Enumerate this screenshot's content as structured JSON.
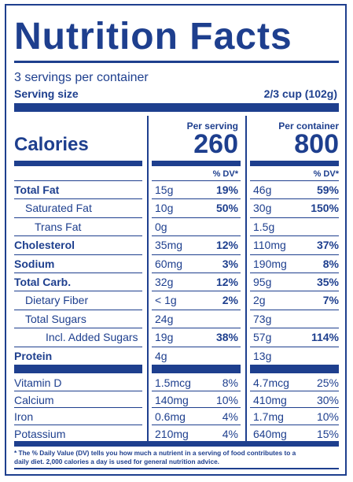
{
  "title": "Nutrition Facts",
  "servings_per_container": "3 servings per container",
  "serving_size_label": "Serving size",
  "serving_size_value": "2/3 cup (102g)",
  "calories_label": "Calories",
  "columns": {
    "per_serving": "Per serving",
    "per_container": "Per container",
    "dv_header": "% DV*"
  },
  "calories": {
    "per_serving": "260",
    "per_container": "800"
  },
  "nutrients": [
    {
      "name": "Total Fat",
      "bold": true,
      "indent": 0,
      "s_amt": "15g",
      "s_dv": "19%",
      "c_amt": "46g",
      "c_dv": "59%"
    },
    {
      "name": "Saturated Fat",
      "bold": false,
      "indent": 1,
      "s_amt": "10g",
      "s_dv": "50%",
      "c_amt": "30g",
      "c_dv": "150%"
    },
    {
      "name": "Trans Fat",
      "bold": false,
      "indent": 2,
      "s_amt": "0g",
      "s_dv": "",
      "c_amt": "1.5g",
      "c_dv": ""
    },
    {
      "name": "Cholesterol",
      "bold": true,
      "indent": 0,
      "s_amt": "35mg",
      "s_dv": "12%",
      "c_amt": "110mg",
      "c_dv": "37%"
    },
    {
      "name": "Sodium",
      "bold": true,
      "indent": 0,
      "s_amt": "60mg",
      "s_dv": "3%",
      "c_amt": "190mg",
      "c_dv": "8%"
    },
    {
      "name": "Total Carb.",
      "bold": true,
      "indent": 0,
      "s_amt": "32g",
      "s_dv": "12%",
      "c_amt": "95g",
      "c_dv": "35%"
    },
    {
      "name": "Dietary Fiber",
      "bold": false,
      "indent": 1,
      "s_amt": "< 1g",
      "s_dv": "2%",
      "c_amt": "2g",
      "c_dv": "7%"
    },
    {
      "name": "Total Sugars",
      "bold": false,
      "indent": 1,
      "s_amt": "24g",
      "s_dv": "",
      "c_amt": "73g",
      "c_dv": ""
    },
    {
      "name": "Incl. Added Sugars",
      "bold": false,
      "indent": 3,
      "s_amt": "19g",
      "s_dv": "38%",
      "c_amt": "57g",
      "c_dv": "114%"
    },
    {
      "name": "Protein",
      "bold": true,
      "indent": 0,
      "s_amt": "4g",
      "s_dv": "",
      "c_amt": "13g",
      "c_dv": ""
    }
  ],
  "vitamins": [
    {
      "name": "Vitamin D",
      "s_amt": "1.5mcg",
      "s_dv": "8%",
      "c_amt": "4.7mcg",
      "c_dv": "25%"
    },
    {
      "name": "Calcium",
      "s_amt": "140mg",
      "s_dv": "10%",
      "c_amt": "410mg",
      "c_dv": "30%"
    },
    {
      "name": "Iron",
      "s_amt": "0.6mg",
      "s_dv": "4%",
      "c_amt": "1.7mg",
      "c_dv": "10%"
    },
    {
      "name": "Potassium",
      "s_amt": "210mg",
      "s_dv": "4%",
      "c_amt": "640mg",
      "c_dv": "15%"
    }
  ],
  "footnote_line1": "* The % Daily Value (DV) tells you how much a nutrient in a serving of food contributes to a",
  "footnote_line2": "daily diet. 2,000 calories a day is used for general nutrition advice.",
  "colors": {
    "ink": "#1e3f8e",
    "background": "#ffffff"
  }
}
